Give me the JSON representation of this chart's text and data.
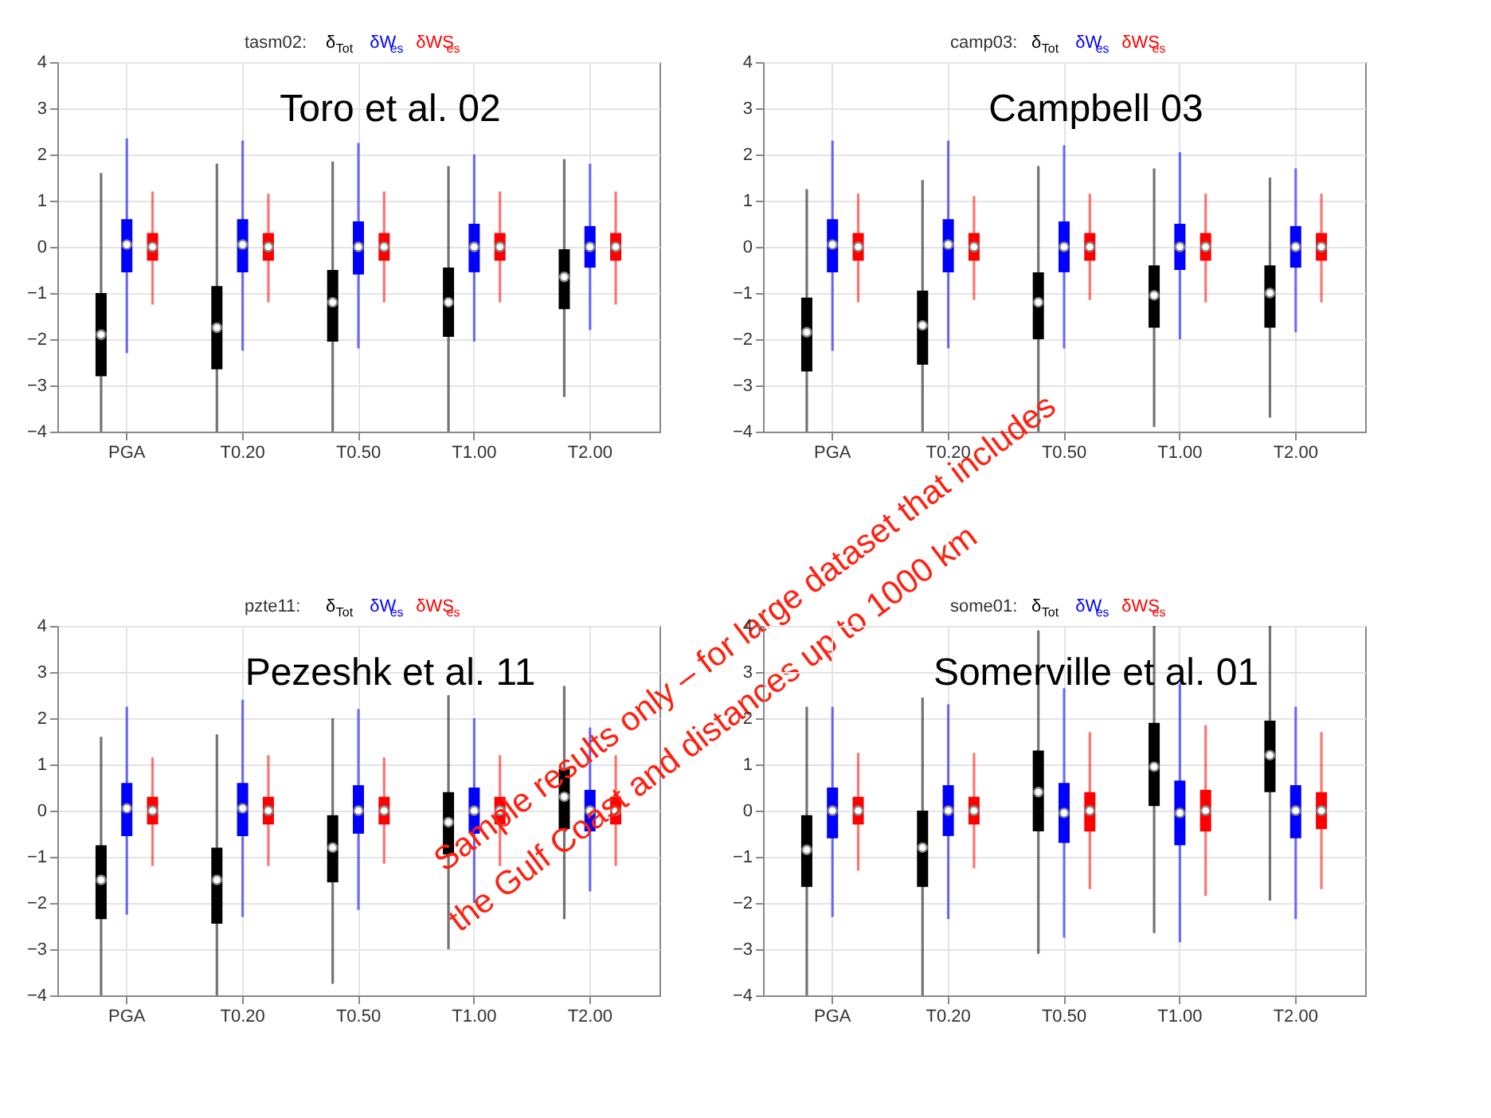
{
  "chart_data": [
    {
      "type": "box",
      "title": "tasm02:",
      "categories": [
        "PGA",
        "T0.20",
        "T0.50",
        "T1.00",
        "T2.00"
      ],
      "ylim": [
        -4,
        4
      ],
      "yticks": [
        -4,
        -3,
        -2,
        -1,
        0,
        1,
        2,
        3,
        4
      ],
      "grid": true,
      "marker": "circle",
      "annotations": [
        "Toro et al. 02"
      ],
      "series": [
        {
          "name": "δ$_{Tot}$",
          "color": "#000000",
          "boxes": [
            {
              "low": -4,
              "q1": -2.8,
              "median": -1.9,
              "q3": -1.0,
              "high": 1.6
            },
            {
              "low": -4,
              "q1": -2.65,
              "median": -1.75,
              "q3": -0.85,
              "high": 1.8
            },
            {
              "low": -4,
              "q1": -2.05,
              "median": -1.2,
              "q3": -0.5,
              "high": 1.85
            },
            {
              "low": -4,
              "q1": -1.95,
              "median": -1.2,
              "q3": -0.45,
              "high": 1.75
            },
            {
              "low": -3.25,
              "q1": -1.35,
              "median": -0.65,
              "q3": -0.05,
              "high": 1.9
            }
          ]
        },
        {
          "name": "δW$_{es}$",
          "color": "#0000ff",
          "boxes": [
            {
              "low": -2.3,
              "q1": -0.55,
              "median": 0.05,
              "q3": 0.6,
              "high": 2.35
            },
            {
              "low": -2.25,
              "q1": -0.55,
              "median": 0.05,
              "q3": 0.6,
              "high": 2.3
            },
            {
              "low": -2.2,
              "q1": -0.6,
              "median": 0,
              "q3": 0.55,
              "high": 2.25
            },
            {
              "low": -2.05,
              "q1": -0.55,
              "median": 0,
              "q3": 0.5,
              "high": 2.0
            },
            {
              "low": -1.8,
              "q1": -0.45,
              "median": 0,
              "q3": 0.45,
              "high": 1.8
            }
          ]
        },
        {
          "name": "δWS$_{es}$",
          "color": "#ff0000",
          "boxes": [
            {
              "low": -1.25,
              "q1": -0.3,
              "median": 0,
              "q3": 0.3,
              "high": 1.2
            },
            {
              "low": -1.2,
              "q1": -0.3,
              "median": 0,
              "q3": 0.3,
              "high": 1.15
            },
            {
              "low": -1.2,
              "q1": -0.3,
              "median": 0,
              "q3": 0.3,
              "high": 1.2
            },
            {
              "low": -1.2,
              "q1": -0.3,
              "median": 0,
              "q3": 0.3,
              "high": 1.2
            },
            {
              "low": -1.25,
              "q1": -0.3,
              "median": 0,
              "q3": 0.3,
              "high": 1.2
            }
          ]
        }
      ]
    },
    {
      "type": "box",
      "title": "camp03:",
      "categories": [
        "PGA",
        "T0.20",
        "T0.50",
        "T1.00",
        "T2.00"
      ],
      "ylim": [
        -4,
        4
      ],
      "yticks": [
        -4,
        -3,
        -2,
        -1,
        0,
        1,
        2,
        3,
        4
      ],
      "grid": true,
      "marker": "circle",
      "annotations": [
        "Campbell 03"
      ],
      "series": [
        {
          "name": "δ$_{Tot}$",
          "color": "#000000",
          "boxes": [
            {
              "low": -4,
              "q1": -2.7,
              "median": -1.85,
              "q3": -1.1,
              "high": 1.25
            },
            {
              "low": -4,
              "q1": -2.55,
              "median": -1.7,
              "q3": -0.95,
              "high": 1.45
            },
            {
              "low": -4,
              "q1": -2.0,
              "median": -1.2,
              "q3": -0.55,
              "high": 1.75
            },
            {
              "low": -3.9,
              "q1": -1.75,
              "median": -1.05,
              "q3": -0.4,
              "high": 1.7
            },
            {
              "low": -3.7,
              "q1": -1.75,
              "median": -1.0,
              "q3": -0.4,
              "high": 1.5
            }
          ]
        },
        {
          "name": "δW$_{es}$",
          "color": "#0000ff",
          "boxes": [
            {
              "low": -2.25,
              "q1": -0.55,
              "median": 0.05,
              "q3": 0.6,
              "high": 2.3
            },
            {
              "low": -2.2,
              "q1": -0.55,
              "median": 0.05,
              "q3": 0.6,
              "high": 2.3
            },
            {
              "low": -2.2,
              "q1": -0.55,
              "median": 0,
              "q3": 0.55,
              "high": 2.2
            },
            {
              "low": -2.0,
              "q1": -0.5,
              "median": 0,
              "q3": 0.5,
              "high": 2.05
            },
            {
              "low": -1.85,
              "q1": -0.45,
              "median": 0,
              "q3": 0.45,
              "high": 1.7
            }
          ]
        },
        {
          "name": "δWS$_{es}$",
          "color": "#ff0000",
          "boxes": [
            {
              "low": -1.2,
              "q1": -0.3,
              "median": 0,
              "q3": 0.3,
              "high": 1.15
            },
            {
              "low": -1.15,
              "q1": -0.3,
              "median": 0,
              "q3": 0.3,
              "high": 1.1
            },
            {
              "low": -1.15,
              "q1": -0.3,
              "median": 0,
              "q3": 0.3,
              "high": 1.15
            },
            {
              "low": -1.2,
              "q1": -0.3,
              "median": 0,
              "q3": 0.3,
              "high": 1.15
            },
            {
              "low": -1.2,
              "q1": -0.3,
              "median": 0,
              "q3": 0.3,
              "high": 1.15
            }
          ]
        }
      ]
    },
    {
      "type": "box",
      "title": "pzte11:",
      "categories": [
        "PGA",
        "T0.20",
        "T0.50",
        "T1.00",
        "T2.00"
      ],
      "ylim": [
        -4,
        4
      ],
      "yticks": [
        -4,
        -3,
        -2,
        -1,
        0,
        1,
        2,
        3,
        4
      ],
      "grid": true,
      "marker": "circle",
      "annotations": [
        "Pezeshk et al. 11",
        "Sample results only – for large dataset that includes",
        "the Gulf Coast and distances up to 1000 km"
      ],
      "series": [
        {
          "name": "δ$_{Tot}$",
          "color": "#000000",
          "boxes": [
            {
              "low": -4,
              "q1": -2.35,
              "median": -1.5,
              "q3": -0.75,
              "high": 1.6
            },
            {
              "low": -4,
              "q1": -2.45,
              "median": -1.5,
              "q3": -0.8,
              "high": 1.65
            },
            {
              "low": -3.75,
              "q1": -1.55,
              "median": -0.8,
              "q3": -0.1,
              "high": 2.0
            },
            {
              "low": -3.0,
              "q1": -0.95,
              "median": -0.25,
              "q3": 0.4,
              "high": 2.5
            },
            {
              "low": -2.35,
              "q1": -0.4,
              "median": 0.3,
              "q3": 0.9,
              "high": 2.7
            }
          ]
        },
        {
          "name": "δW$_{es}$",
          "color": "#0000ff",
          "boxes": [
            {
              "low": -2.25,
              "q1": -0.55,
              "median": 0.05,
              "q3": 0.6,
              "high": 2.25
            },
            {
              "low": -2.3,
              "q1": -0.55,
              "median": 0.05,
              "q3": 0.6,
              "high": 2.4
            },
            {
              "low": -2.15,
              "q1": -0.5,
              "median": 0,
              "q3": 0.55,
              "high": 2.2
            },
            {
              "low": -2.0,
              "q1": -0.5,
              "median": 0,
              "q3": 0.5,
              "high": 2.0
            },
            {
              "low": -1.75,
              "q1": -0.45,
              "median": 0,
              "q3": 0.45,
              "high": 1.8
            }
          ]
        },
        {
          "name": "δWS$_{es}$",
          "color": "#ff0000",
          "boxes": [
            {
              "low": -1.2,
              "q1": -0.3,
              "median": 0,
              "q3": 0.3,
              "high": 1.15
            },
            {
              "low": -1.2,
              "q1": -0.3,
              "median": 0,
              "q3": 0.3,
              "high": 1.2
            },
            {
              "low": -1.15,
              "q1": -0.3,
              "median": 0,
              "q3": 0.3,
              "high": 1.15
            },
            {
              "low": -1.2,
              "q1": -0.3,
              "median": 0,
              "q3": 0.3,
              "high": 1.2
            },
            {
              "low": -1.2,
              "q1": -0.3,
              "median": 0,
              "q3": 0.3,
              "high": 1.2
            }
          ]
        }
      ]
    },
    {
      "type": "box",
      "title": "some01:",
      "categories": [
        "PGA",
        "T0.20",
        "T0.50",
        "T1.00",
        "T2.00"
      ],
      "ylim": [
        -4,
        4
      ],
      "yticks": [
        -4,
        -3,
        -2,
        -1,
        0,
        1,
        2,
        3,
        4
      ],
      "grid": true,
      "marker": "circle",
      "annotations": [
        "Somerville et al. 01"
      ],
      "series": [
        {
          "name": "δ$_{Tot}$",
          "color": "#000000",
          "boxes": [
            {
              "low": -4,
              "q1": -1.65,
              "median": -0.85,
              "q3": -0.1,
              "high": 2.25
            },
            {
              "low": -4,
              "q1": -1.65,
              "median": -0.8,
              "q3": 0.0,
              "high": 2.45
            },
            {
              "low": -3.1,
              "q1": -0.45,
              "median": 0.4,
              "q3": 1.3,
              "high": 3.9
            },
            {
              "low": -2.65,
              "q1": 0.1,
              "median": 0.95,
              "q3": 1.9,
              "high": 4
            },
            {
              "low": -1.95,
              "q1": 0.4,
              "median": 1.2,
              "q3": 1.95,
              "high": 4
            }
          ]
        },
        {
          "name": "δW$_{es}$",
          "color": "#0000ff",
          "boxes": [
            {
              "low": -2.3,
              "q1": -0.6,
              "median": 0,
              "q3": 0.5,
              "high": 2.25
            },
            {
              "low": -2.35,
              "q1": -0.55,
              "median": 0,
              "q3": 0.55,
              "high": 2.3
            },
            {
              "low": -2.75,
              "q1": -0.7,
              "median": -0.05,
              "q3": 0.6,
              "high": 2.65
            },
            {
              "low": -2.85,
              "q1": -0.75,
              "median": -0.05,
              "q3": 0.65,
              "high": 2.75
            },
            {
              "low": -2.35,
              "q1": -0.6,
              "median": 0,
              "q3": 0.55,
              "high": 2.25
            }
          ]
        },
        {
          "name": "δWS$_{es}$",
          "color": "#ff0000",
          "boxes": [
            {
              "low": -1.3,
              "q1": -0.3,
              "median": 0,
              "q3": 0.3,
              "high": 1.25
            },
            {
              "low": -1.25,
              "q1": -0.3,
              "median": 0,
              "q3": 0.3,
              "high": 1.25
            },
            {
              "low": -1.7,
              "q1": -0.45,
              "median": 0,
              "q3": 0.4,
              "high": 1.7
            },
            {
              "low": -1.85,
              "q1": -0.45,
              "median": 0,
              "q3": 0.45,
              "high": 1.85
            },
            {
              "low": -1.7,
              "q1": -0.4,
              "median": 0,
              "q3": 0.4,
              "high": 1.7
            }
          ]
        }
      ]
    }
  ]
}
